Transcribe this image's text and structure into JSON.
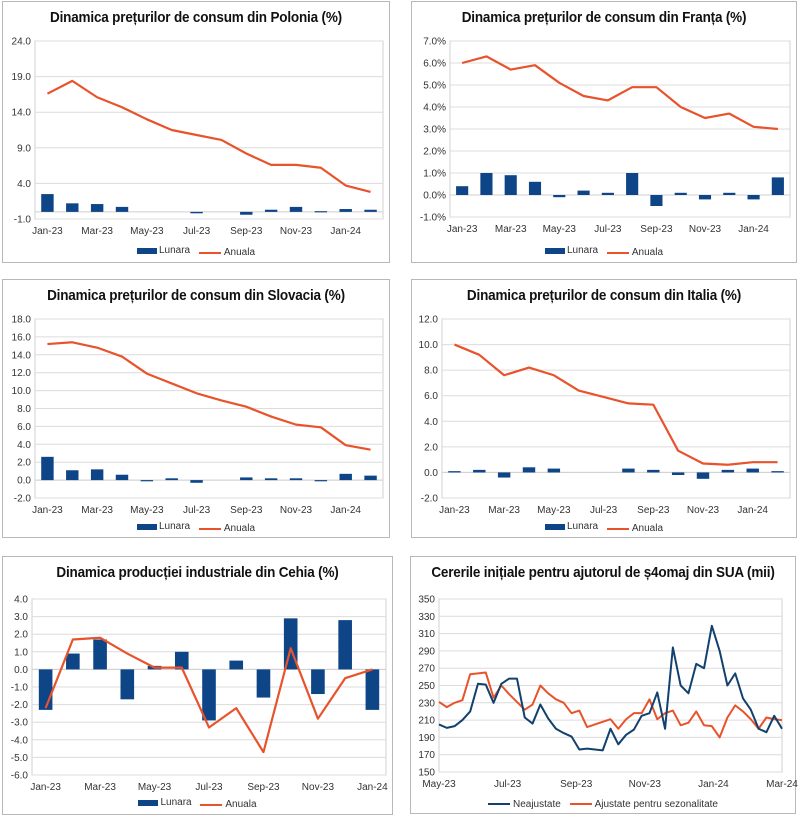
{
  "colors": {
    "bar": "#0d4587",
    "line": "#e8532b",
    "navy_line": "#12416f",
    "grid": "#dcdcdc"
  },
  "legend": {
    "lunara": "Lunara",
    "anuala": "Anuala"
  },
  "chart_data": [
    {
      "id": "polonia",
      "type": "bar+line",
      "title": "Dinamica prețurilor de consum din Polonia (%)",
      "categories": [
        "Jan-23",
        "Feb-23",
        "Mar-23",
        "Apr-23",
        "May-23",
        "Jun-23",
        "Jul-23",
        "Aug-23",
        "Sep-23",
        "Oct-23",
        "Nov-23",
        "Dec-23",
        "Jan-24",
        "Feb-24"
      ],
      "tick_labels": [
        "Jan-23",
        "Mar-23",
        "May-23",
        "Jul-23",
        "Sep-23",
        "Nov-23",
        "Jan-24"
      ],
      "y_ticks": [
        "-1.0",
        "4.0",
        "9.0",
        "14.0",
        "19.0",
        "24.0"
      ],
      "ylim": [
        -1,
        24
      ],
      "ystep": 5,
      "series": [
        {
          "name": "Lunara",
          "type": "bar",
          "values": [
            2.5,
            1.2,
            1.1,
            0.7,
            0.0,
            0.0,
            -0.2,
            0.0,
            -0.4,
            0.3,
            0.7,
            0.1,
            0.4,
            0.3
          ]
        },
        {
          "name": "Anuala",
          "type": "line",
          "values": [
            16.6,
            18.4,
            16.1,
            14.7,
            13.0,
            11.5,
            10.8,
            10.1,
            8.2,
            6.6,
            6.6,
            6.2,
            3.7,
            2.8
          ]
        }
      ],
      "legend_position": "bottom",
      "grid": true
    },
    {
      "id": "franta",
      "type": "bar+line",
      "title": "Dinamica prețurilor de consum din Franța (%)",
      "categories": [
        "Jan-23",
        "Feb-23",
        "Mar-23",
        "Apr-23",
        "May-23",
        "Jun-23",
        "Jul-23",
        "Aug-23",
        "Sep-23",
        "Oct-23",
        "Nov-23",
        "Dec-23",
        "Jan-24",
        "Feb-24"
      ],
      "tick_labels": [
        "Jan-23",
        "Mar-23",
        "May-23",
        "Jul-23",
        "Sep-23",
        "Nov-23",
        "Jan-24"
      ],
      "y_ticks": [
        "-1.0%",
        "0.0%",
        "1.0%",
        "2.0%",
        "3.0%",
        "4.0%",
        "5.0%",
        "6.0%",
        "7.0%"
      ],
      "ylim": [
        -1,
        7
      ],
      "ystep": 1,
      "series": [
        {
          "name": "Lunara",
          "type": "bar",
          "values": [
            0.4,
            1.0,
            0.9,
            0.6,
            -0.1,
            0.2,
            0.1,
            1.0,
            -0.5,
            0.1,
            -0.2,
            0.1,
            -0.2,
            0.8
          ]
        },
        {
          "name": "Anuala",
          "type": "line",
          "values": [
            6.0,
            6.3,
            5.7,
            5.9,
            5.1,
            4.5,
            4.3,
            4.9,
            4.9,
            4.0,
            3.5,
            3.7,
            3.1,
            3.0
          ]
        }
      ],
      "legend_position": "bottom",
      "grid": true
    },
    {
      "id": "slovacia",
      "type": "bar+line",
      "title": "Dinamica prețurilor de consum din Slovacia (%)",
      "categories": [
        "Jan-23",
        "Feb-23",
        "Mar-23",
        "Apr-23",
        "May-23",
        "Jun-23",
        "Jul-23",
        "Aug-23",
        "Sep-23",
        "Oct-23",
        "Nov-23",
        "Dec-23",
        "Jan-24",
        "Feb-24"
      ],
      "tick_labels": [
        "Jan-23",
        "Mar-23",
        "May-23",
        "Jul-23",
        "Sep-23",
        "Nov-23",
        "Jan-24"
      ],
      "y_ticks": [
        "-2.0",
        "0.0",
        "2.0",
        "4.0",
        "6.0",
        "8.0",
        "10.0",
        "12.0",
        "14.0",
        "16.0",
        "18.0"
      ],
      "ylim": [
        -2,
        18
      ],
      "ystep": 2,
      "series": [
        {
          "name": "Lunara",
          "type": "bar",
          "values": [
            2.6,
            1.1,
            1.2,
            0.6,
            -0.1,
            0.2,
            -0.3,
            0.0,
            0.3,
            0.2,
            0.2,
            -0.1,
            0.7,
            0.5
          ]
        },
        {
          "name": "Anuala",
          "type": "line",
          "values": [
            15.2,
            15.4,
            14.8,
            13.8,
            11.9,
            10.8,
            9.7,
            8.9,
            8.2,
            7.1,
            6.2,
            5.9,
            3.9,
            3.4
          ]
        }
      ],
      "legend_position": "bottom",
      "grid": true
    },
    {
      "id": "italia",
      "type": "bar+line",
      "title": "Dinamica prețurilor de consum din Italia (%)",
      "categories": [
        "Jan-23",
        "Feb-23",
        "Mar-23",
        "Apr-23",
        "May-23",
        "Jun-23",
        "Jul-23",
        "Aug-23",
        "Sep-23",
        "Oct-23",
        "Nov-23",
        "Dec-23",
        "Jan-24",
        "Feb-24"
      ],
      "tick_labels": [
        "Jan-23",
        "Mar-23",
        "May-23",
        "Jul-23",
        "Sep-23",
        "Nov-23",
        "Jan-24"
      ],
      "y_ticks": [
        "-2.0",
        "0.0",
        "2.0",
        "4.0",
        "6.0",
        "8.0",
        "10.0",
        "12.0"
      ],
      "ylim": [
        -2,
        12
      ],
      "ystep": 2,
      "series": [
        {
          "name": "Lunara",
          "type": "bar",
          "values": [
            0.1,
            0.2,
            -0.4,
            0.4,
            0.3,
            0.0,
            0.0,
            0.3,
            0.2,
            -0.2,
            -0.5,
            0.2,
            0.3,
            0.1
          ]
        },
        {
          "name": "Anuala",
          "type": "line",
          "values": [
            10.0,
            9.2,
            7.6,
            8.2,
            7.6,
            6.4,
            5.9,
            5.4,
            5.3,
            1.7,
            0.7,
            0.6,
            0.8,
            0.8
          ]
        }
      ],
      "legend_position": "bottom",
      "grid": true
    },
    {
      "id": "cehia",
      "type": "bar+line",
      "title": "Dinamica producției industriale din Cehia (%)",
      "categories": [
        "Jan-23",
        "Feb-23",
        "Mar-23",
        "Apr-23",
        "May-23",
        "Jun-23",
        "Jul-23",
        "Aug-23",
        "Sep-23",
        "Oct-23",
        "Nov-23",
        "Dec-23",
        "Jan-24"
      ],
      "tick_labels": [
        "Jan-23",
        "Mar-23",
        "May-23",
        "Jul-23",
        "Sep-23",
        "Nov-23",
        "Jan-24"
      ],
      "y_ticks": [
        "-6.0",
        "-5.0",
        "-4.0",
        "-3.0",
        "-2.0",
        "-1.0",
        "0.0",
        "1.0",
        "2.0",
        "3.0",
        "4.0"
      ],
      "ylim": [
        -6,
        4
      ],
      "ystep": 1,
      "series": [
        {
          "name": "Lunara",
          "type": "bar",
          "values": [
            -2.3,
            0.9,
            1.7,
            -1.7,
            0.2,
            1.0,
            -2.9,
            0.5,
            -1.6,
            2.9,
            -1.4,
            2.8,
            -2.3
          ]
        },
        {
          "name": "Anuala",
          "type": "line",
          "values": [
            -2.2,
            1.7,
            1.8,
            0.9,
            0.1,
            0.1,
            -3.3,
            -2.2,
            -4.7,
            1.2,
            -2.8,
            -0.5,
            0.0
          ]
        }
      ],
      "legend_position": "bottom",
      "grid": true
    },
    {
      "id": "sua",
      "type": "line",
      "title": "Cererile inițiale pentru ajutorul de ș4omaj din SUA (mii)",
      "x_tick_labels": [
        "May-23",
        "Jul-23",
        "Sep-23",
        "Nov-23",
        "Jan-24",
        "Mar-24"
      ],
      "y_ticks": [
        "150",
        "170",
        "190",
        "210",
        "230",
        "250",
        "270",
        "290",
        "310",
        "330",
        "350"
      ],
      "ylim": [
        150,
        350
      ],
      "ystep": 20,
      "frequency": "weekly",
      "series": [
        {
          "name": "Neajustate",
          "type": "line",
          "values": [
            205,
            201,
            203,
            210,
            220,
            252,
            251,
            230,
            252,
            258,
            258,
            213,
            206,
            228,
            212,
            200,
            195,
            191,
            176,
            177,
            176,
            175,
            200,
            182,
            193,
            199,
            215,
            218,
            242,
            200,
            294,
            250,
            241,
            275,
            270,
            319,
            290,
            250,
            264,
            235,
            222,
            200,
            196,
            215,
            200
          ]
        },
        {
          "name": "Ajustate pentru sezonalitate",
          "type": "line",
          "values": [
            231,
            225,
            230,
            233,
            263,
            264,
            265,
            236,
            250,
            240,
            231,
            222,
            228,
            250,
            241,
            234,
            230,
            218,
            221,
            202,
            205,
            208,
            211,
            200,
            211,
            218,
            218,
            234,
            211,
            218,
            221,
            204,
            207,
            220,
            204,
            203,
            190,
            213,
            227,
            220,
            211,
            200,
            213,
            211,
            210
          ]
        }
      ],
      "legend_position": "bottom",
      "grid": true
    }
  ]
}
